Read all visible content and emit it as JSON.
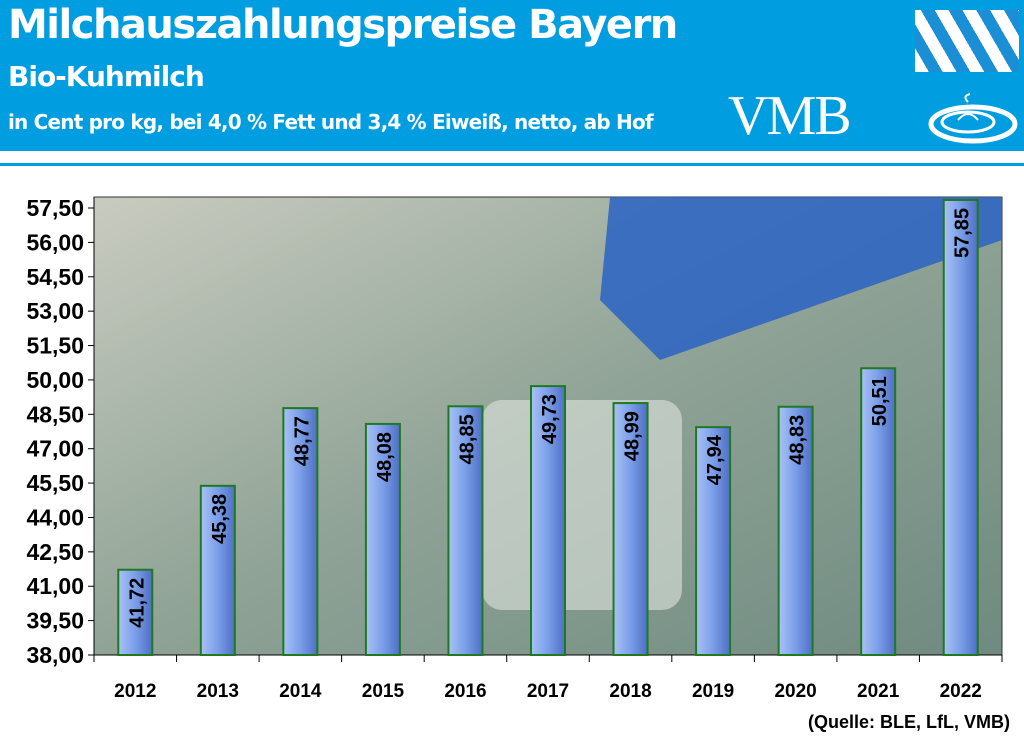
{
  "header": {
    "title": "Milchauszahlungspreise Bayern",
    "subtitle": "Bio-Kuhmilch",
    "unit_line": "in Cent pro kg, bei 4,0 % Fett und 3,4 % Eiweiß, netto, ab Hof",
    "logo_text": "VMB"
  },
  "source": "(Quelle: BLE, LfL, VMB)",
  "chart_data": {
    "type": "bar",
    "categories": [
      "2012",
      "2013",
      "2014",
      "2015",
      "2016",
      "2017",
      "2018",
      "2019",
      "2020",
      "2021",
      "2022"
    ],
    "values": [
      41.72,
      45.38,
      48.77,
      48.08,
      48.85,
      49.73,
      48.99,
      47.94,
      48.83,
      50.51,
      57.85
    ],
    "data_labels": [
      "41,72",
      "45,38",
      "48,77",
      "48,08",
      "48,85",
      "49,73",
      "48,99",
      "47,94",
      "48,83",
      "50,51",
      "57,85"
    ],
    "ylim": [
      38,
      57.5
    ],
    "yticks": [
      "38,00",
      "39,50",
      "41,00",
      "42,50",
      "44,00",
      "45,50",
      "47,00",
      "48,50",
      "50,00",
      "51,50",
      "53,00",
      "54,50",
      "56,00",
      "57,50"
    ],
    "ytick_values": [
      38,
      39.5,
      41,
      42.5,
      44,
      45.5,
      47,
      48.5,
      50,
      51.5,
      53,
      54.5,
      56,
      57.5
    ],
    "grid": false,
    "bar_color": "#7a9ee8",
    "bar_border": "#1f7a1f"
  }
}
